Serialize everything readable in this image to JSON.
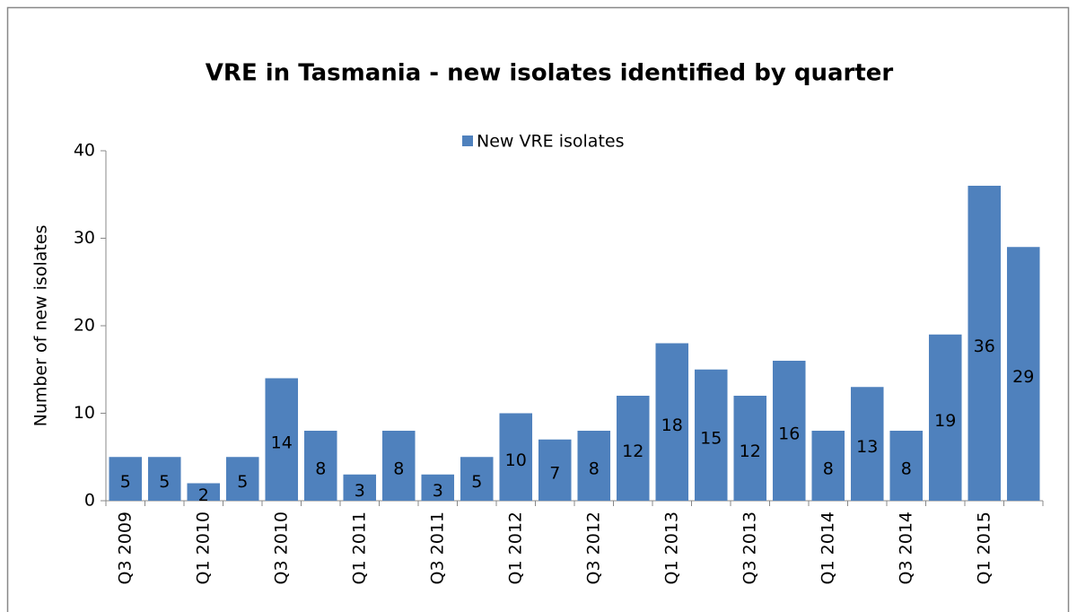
{
  "chart_data": {
    "type": "bar",
    "title": "VRE in Tasmania - new isolates identified by quarter",
    "y_label": "Number of new isolates",
    "categories": [
      "Q3 2009",
      null,
      "Q1 2010",
      null,
      "Q3 2010",
      null,
      "Q1 2011",
      null,
      "Q3 2011",
      null,
      "Q1 2012",
      null,
      "Q3 2012",
      null,
      "Q1 2013",
      null,
      "Q3 2013",
      null,
      "Q1 2014",
      null,
      "Q3 2014",
      null,
      "Q1 2015",
      null
    ],
    "series": [
      {
        "name": "New VRE isolates",
        "color": "#4f81bd",
        "values": [
          5,
          5,
          2,
          5,
          14,
          8,
          3,
          8,
          3,
          5,
          10,
          7,
          8,
          12,
          18,
          15,
          12,
          16,
          8,
          13,
          8,
          19,
          36,
          29
        ]
      }
    ],
    "ylim": [
      0,
      40
    ],
    "yticks": [
      0,
      10,
      20,
      30,
      40
    ],
    "legend": "top"
  }
}
